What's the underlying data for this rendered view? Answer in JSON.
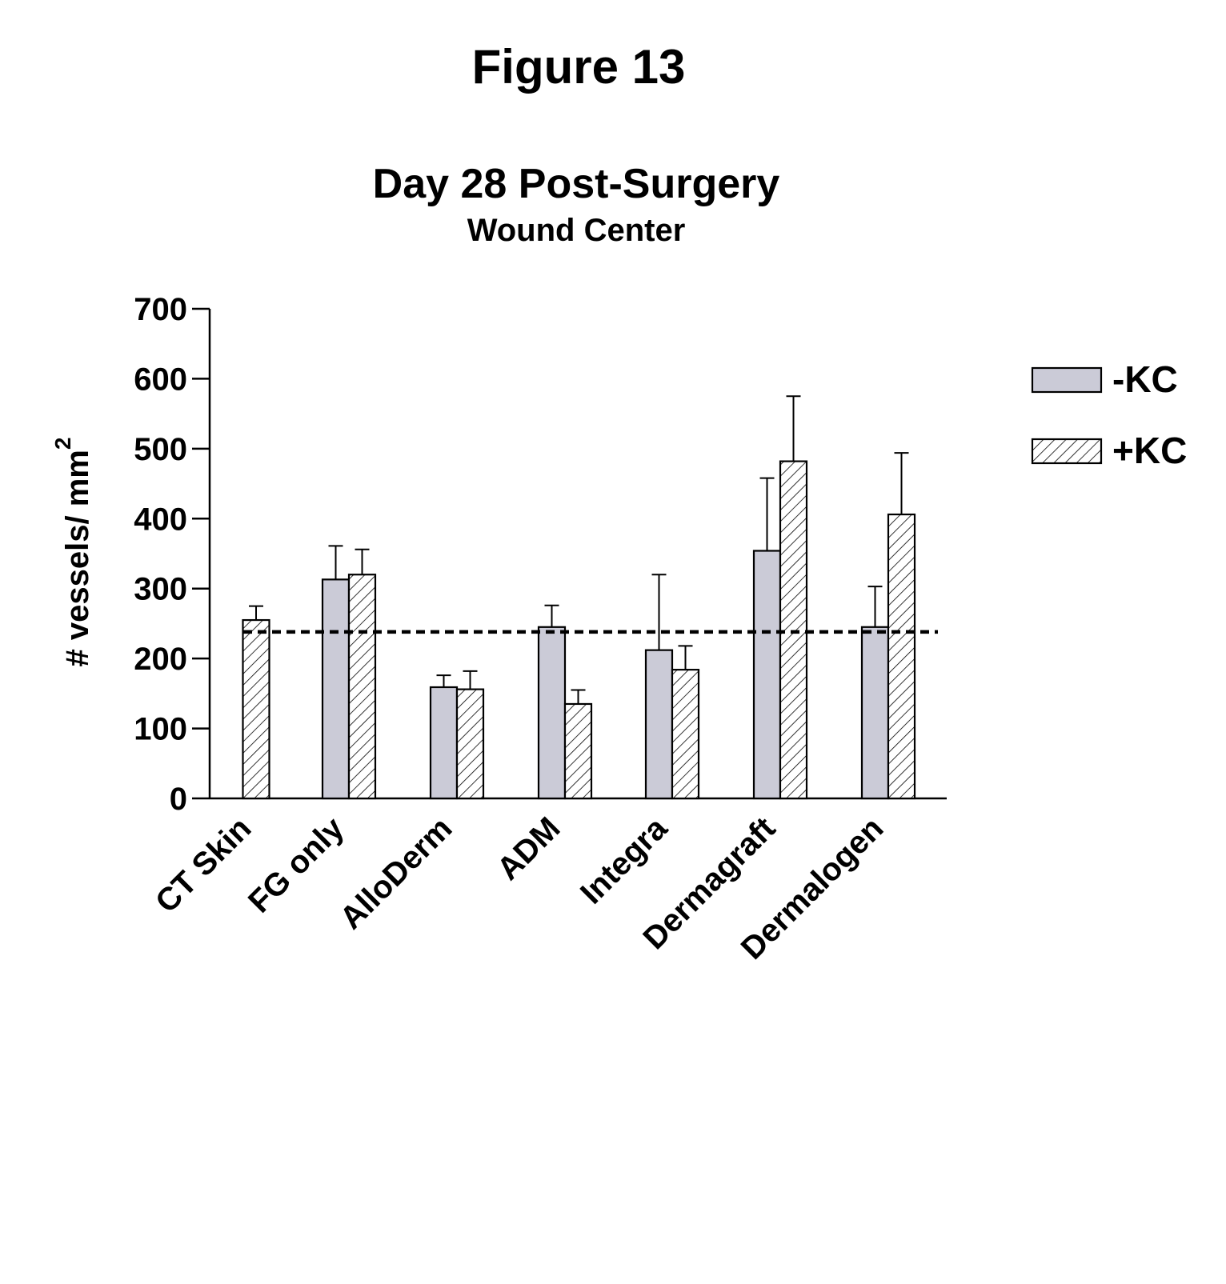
{
  "figure_label": "Figure 13",
  "chart_data": {
    "type": "bar",
    "title": "Day 28 Post-Surgery",
    "subtitle": "Wound Center",
    "ylabel": "# vessels/ mm",
    "ylabel_superscript": "2",
    "ylim": [
      0,
      700
    ],
    "yticks": [
      0,
      100,
      200,
      300,
      400,
      500,
      600,
      700
    ],
    "categories": [
      "CT Skin",
      "FG only",
      "AlloDerm",
      "ADM",
      "Integra",
      "Dermagraft",
      "Dermalogen"
    ],
    "series": [
      {
        "name": "-KC",
        "fill": "#cbcbd7",
        "pattern": "solid",
        "values": [
          null,
          313,
          159,
          245,
          212,
          354,
          245
        ],
        "errors": [
          null,
          48,
          17,
          31,
          108,
          104,
          58
        ]
      },
      {
        "name": "+KC",
        "fill": "#ffffff",
        "pattern": "hatched",
        "values": [
          255,
          320,
          156,
          135,
          184,
          482,
          406
        ],
        "errors": [
          20,
          36,
          26,
          20,
          34,
          93,
          88
        ]
      }
    ],
    "reference_line": {
      "value": 238,
      "style": "dashed"
    },
    "legend_position": "top-right",
    "grid": false
  }
}
